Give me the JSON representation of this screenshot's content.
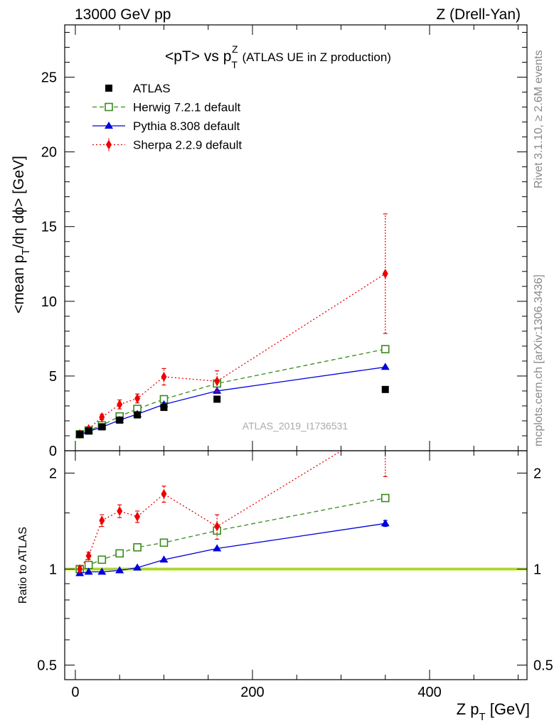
{
  "header": {
    "left": "13000 GeV pp",
    "right": "Z (Drell-Yan)"
  },
  "side_text": {
    "rivet": "Rivet 3.1.10, ≥ 2.6M events",
    "mcplots": "mcplots.cern.ch [arXiv:1306.3436]"
  },
  "chart_data": {
    "type": "scatter",
    "title_main": "<pT> vs p",
    "title_sup": "Z",
    "title_sub": "T",
    "title_note": "(ATLAS UE in Z production)",
    "ylabel_parts": {
      "a": "<mean p",
      "b": "T",
      "c": "/dη dϕ> [GeV]"
    },
    "xlabel_parts": {
      "a": "Z p",
      "b": "T",
      "c": " [GeV]"
    },
    "ratio_ylabel": "Ratio to ATLAS",
    "analysis_id": "ATLAS_2019_I1736531",
    "xlim": [
      -12,
      510
    ],
    "ylim": [
      0,
      28.5
    ],
    "ratio_ylim": [
      0.45,
      2.35
    ],
    "x_ticks": [
      0,
      200,
      400
    ],
    "y_ticks": [
      0,
      5,
      10,
      15,
      20,
      25
    ],
    "ratio_ticks": [
      0.5,
      1,
      2
    ],
    "x_tick_labels": [
      "0",
      "200",
      "400"
    ],
    "y_tick_labels": [
      "0",
      "5",
      "10",
      "15",
      "20",
      "25"
    ],
    "ratio_tick_labels": [
      "0.5",
      "1",
      "2"
    ],
    "x": [
      5,
      15,
      30,
      50,
      70,
      100,
      160,
      350
    ],
    "series": [
      {
        "name": "ATLAS",
        "color": "#000000",
        "marker": "square-filled",
        "line": "none",
        "values": [
          1.1,
          1.32,
          1.6,
          2.05,
          2.4,
          2.9,
          3.45,
          4.1
        ]
      },
      {
        "name": "Herwig 7.2.1 default",
        "color": "#3a8a1e",
        "marker": "square-open",
        "line": "dashed",
        "values": [
          1.1,
          1.36,
          1.7,
          2.3,
          2.8,
          3.45,
          4.5,
          6.8
        ]
      },
      {
        "name": "Pythia 8.308 default",
        "color": "#0000dd",
        "marker": "triangle",
        "line": "solid",
        "values": [
          1.07,
          1.3,
          1.58,
          2.05,
          2.45,
          3.1,
          4.0,
          5.6
        ]
      },
      {
        "name": "Sherpa 2.2.9 default",
        "color": "#ee0000",
        "marker": "diamond",
        "line": "dotted",
        "values": [
          1.12,
          1.45,
          2.25,
          3.1,
          3.5,
          4.95,
          4.65,
          11.85
        ],
        "errors": [
          0.05,
          0.12,
          0.18,
          0.3,
          0.3,
          0.55,
          0.7,
          4.0
        ]
      }
    ],
    "ratio_series": [
      {
        "name": "Herwig 7.2.1 default",
        "values": [
          1.0,
          1.03,
          1.07,
          1.12,
          1.17,
          1.21,
          1.32,
          1.67
        ]
      },
      {
        "name": "Pythia 8.308 default",
        "values": [
          0.97,
          0.98,
          0.98,
          0.99,
          1.01,
          1.07,
          1.16,
          1.39
        ],
        "errors": [
          0,
          0,
          0,
          0,
          0,
          0,
          0,
          0.03
        ]
      },
      {
        "name": "Sherpa 2.2.9 default",
        "values": [
          1.0,
          1.1,
          1.42,
          1.52,
          1.46,
          1.72,
          1.36,
          2.85
        ],
        "errors": [
          0.02,
          0.03,
          0.06,
          0.07,
          0.06,
          0.1,
          0.12,
          0.9
        ]
      }
    ],
    "reference_band": {
      "value": 1.0,
      "color": "#ccee66"
    }
  }
}
